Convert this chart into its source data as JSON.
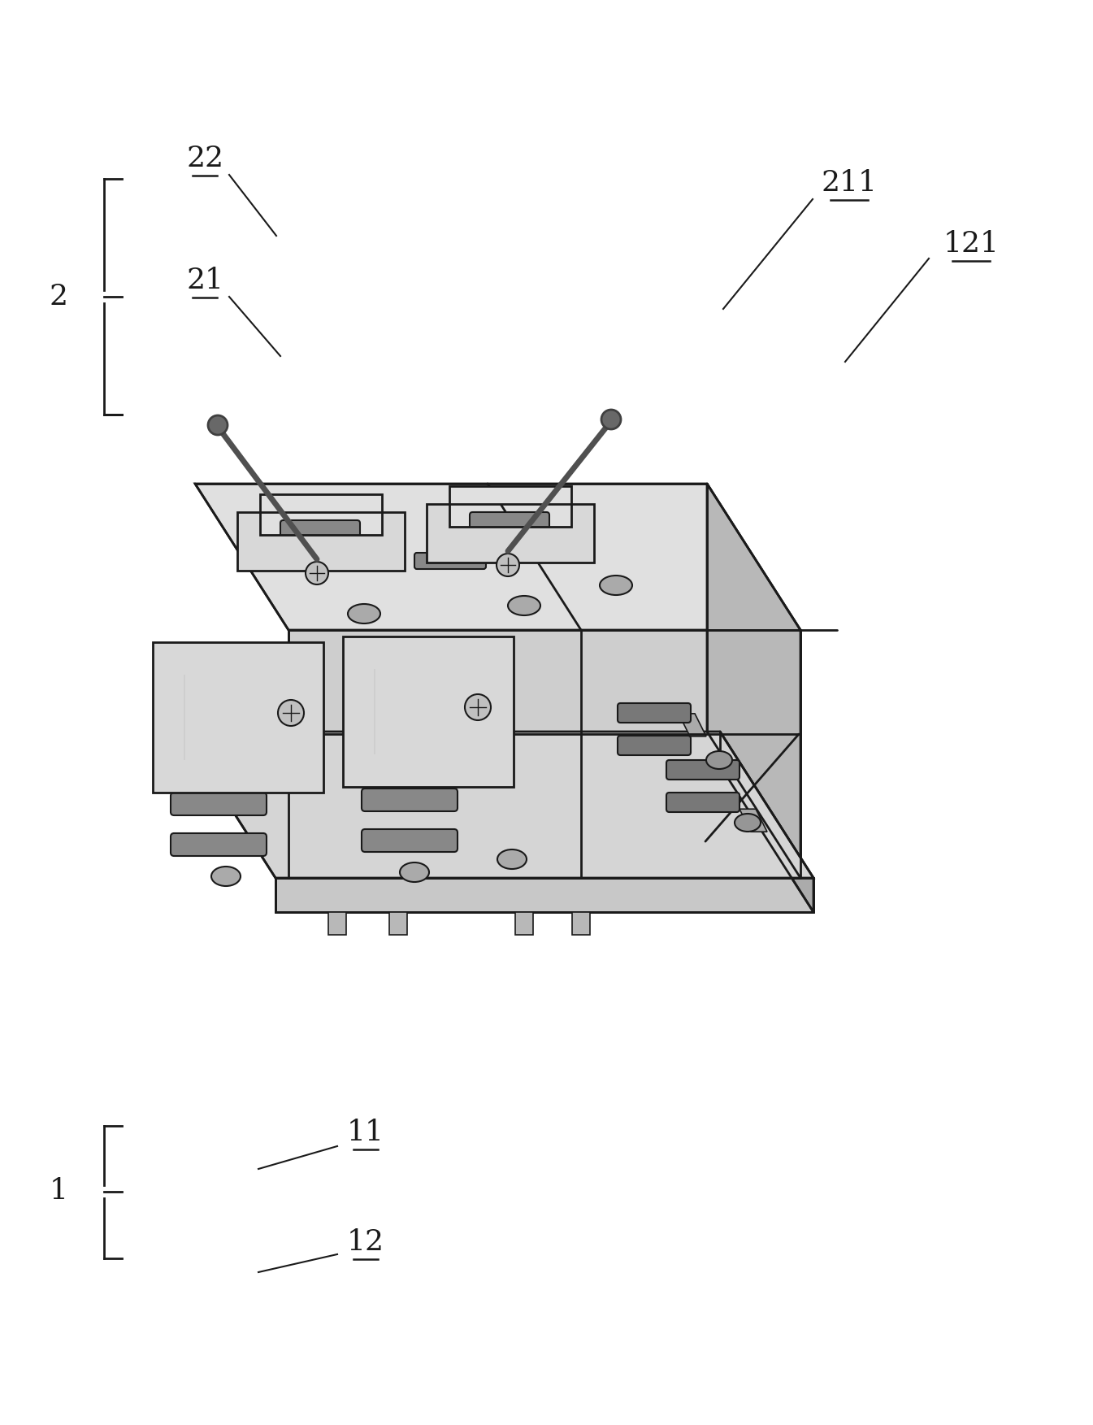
{
  "bg_color": "#ffffff",
  "line_color": "#1a1a1a",
  "figsize": [
    13.45,
    17.53
  ],
  "dpi": 100,
  "label_fontsize": 26,
  "top_face_color": "#e0e0e0",
  "front_face_color": "#cecece",
  "right_face_color": "#b8b8b8",
  "base_front_color": "#c8c8c8",
  "base_right_color": "#ababab",
  "base_top_color": "#d5d5d5",
  "bracket_color": "#d8d8d8",
  "slot_color": "#888888",
  "hole_color": "#aaaaaa",
  "screw_color": "#c0c0c0",
  "foot_color": "#b8b8b8"
}
